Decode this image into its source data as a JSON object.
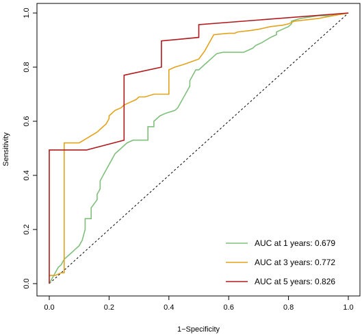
{
  "chart_data": {
    "type": "line",
    "title": "",
    "xlabel": "1−Specificity",
    "ylabel": "Sensitivity",
    "xlim": [
      0,
      1
    ],
    "ylim": [
      0,
      1
    ],
    "x_ticks": [
      0.0,
      0.2,
      0.4,
      0.6,
      0.8,
      1.0
    ],
    "y_ticks": [
      0.0,
      0.2,
      0.4,
      0.6,
      0.8,
      1.0
    ],
    "tick_labels": [
      "0.0",
      "0.2",
      "0.4",
      "0.6",
      "0.8",
      "1.0"
    ],
    "grid": false,
    "legend_position": "bottom-right",
    "reference_line": {
      "style": "dashed",
      "from": [
        0,
        0
      ],
      "to": [
        1,
        1
      ],
      "color": "#000000"
    },
    "series": [
      {
        "name": "AUC at 1 years: 0.679",
        "color": "#7fbf7b",
        "x": [
          0.0,
          0.02,
          0.03,
          0.04,
          0.05,
          0.06,
          0.07,
          0.08,
          0.09,
          0.1,
          0.11,
          0.12,
          0.12,
          0.14,
          0.14,
          0.16,
          0.16,
          0.17,
          0.17,
          0.18,
          0.19,
          0.2,
          0.21,
          0.22,
          0.23,
          0.25,
          0.26,
          0.28,
          0.3,
          0.33,
          0.33,
          0.35,
          0.35,
          0.36,
          0.37,
          0.39,
          0.42,
          0.43,
          0.44,
          0.45,
          0.46,
          0.47,
          0.47,
          0.48,
          0.49,
          0.5,
          0.51,
          0.52,
          0.53,
          0.54,
          0.55,
          0.56,
          0.58,
          0.6,
          0.65,
          0.68,
          0.69,
          0.71,
          0.74,
          0.76,
          0.76,
          0.78,
          0.8,
          0.81,
          0.81,
          0.84,
          0.87,
          0.9,
          0.94,
          0.97,
          1.0
        ],
        "y": [
          0.0,
          0.04,
          0.06,
          0.07,
          0.09,
          0.1,
          0.11,
          0.12,
          0.13,
          0.14,
          0.16,
          0.2,
          0.24,
          0.24,
          0.28,
          0.31,
          0.33,
          0.35,
          0.38,
          0.4,
          0.42,
          0.44,
          0.46,
          0.48,
          0.49,
          0.51,
          0.52,
          0.53,
          0.53,
          0.53,
          0.58,
          0.58,
          0.6,
          0.61,
          0.62,
          0.63,
          0.64,
          0.65,
          0.67,
          0.69,
          0.71,
          0.73,
          0.75,
          0.77,
          0.79,
          0.79,
          0.8,
          0.81,
          0.82,
          0.83,
          0.84,
          0.85,
          0.855,
          0.855,
          0.855,
          0.87,
          0.88,
          0.89,
          0.91,
          0.92,
          0.93,
          0.94,
          0.95,
          0.96,
          0.97,
          0.98,
          0.985,
          0.99,
          0.99,
          0.995,
          1.0
        ]
      },
      {
        "name": "AUC at 3 years: 0.772",
        "color": "#e3a21a",
        "x": [
          0.0,
          0.02,
          0.04,
          0.05,
          0.05,
          0.1,
          0.16,
          0.18,
          0.19,
          0.2,
          0.2,
          0.22,
          0.24,
          0.25,
          0.27,
          0.29,
          0.3,
          0.32,
          0.35,
          0.4,
          0.4,
          0.42,
          0.45,
          0.5,
          0.52,
          0.55,
          0.6,
          0.62,
          0.63,
          0.67,
          0.7,
          0.74,
          0.78,
          0.8,
          0.82,
          0.86,
          0.9,
          0.95,
          1.0
        ],
        "y": [
          0.03,
          0.03,
          0.04,
          0.04,
          0.52,
          0.52,
          0.56,
          0.58,
          0.59,
          0.61,
          0.62,
          0.64,
          0.65,
          0.66,
          0.67,
          0.68,
          0.69,
          0.69,
          0.7,
          0.7,
          0.79,
          0.8,
          0.81,
          0.83,
          0.86,
          0.92,
          0.925,
          0.925,
          0.93,
          0.935,
          0.94,
          0.95,
          0.955,
          0.96,
          0.97,
          0.975,
          0.98,
          0.99,
          1.0
        ]
      },
      {
        "name": "AUC at 5 years: 0.826",
        "color": "#b2181b",
        "x": [
          0.0,
          0.0,
          0.065,
          0.125,
          0.25,
          0.25,
          0.375,
          0.375,
          0.5,
          0.5,
          1.0
        ],
        "y": [
          0.0,
          0.494,
          0.494,
          0.494,
          0.53,
          0.77,
          0.8,
          0.897,
          0.91,
          0.957,
          1.0
        ]
      }
    ]
  }
}
